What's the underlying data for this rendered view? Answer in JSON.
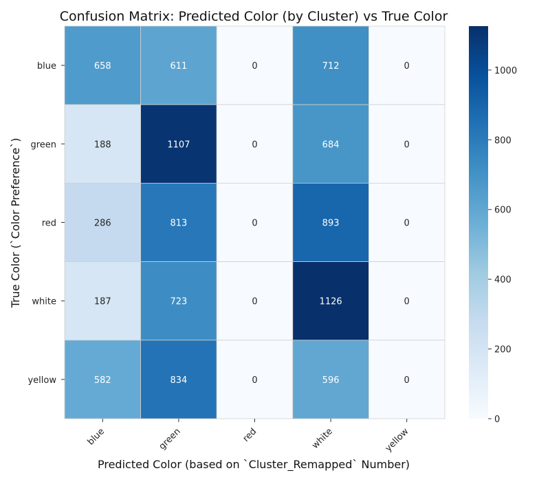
{
  "chart_data": {
    "type": "heatmap",
    "title": "Confusion Matrix: Predicted Color (by Cluster) vs True Color",
    "xlabel": "Predicted Color (based on `Cluster_Remapped` Number)",
    "ylabel": "True Color (`Color Preference`)",
    "x_categories": [
      "blue",
      "green",
      "red",
      "white",
      "yellow"
    ],
    "y_categories": [
      "blue",
      "green",
      "red",
      "white",
      "yellow"
    ],
    "values": [
      [
        658,
        611,
        0,
        712,
        0
      ],
      [
        188,
        1107,
        0,
        684,
        0
      ],
      [
        286,
        813,
        0,
        893,
        0
      ],
      [
        187,
        723,
        0,
        1126,
        0
      ],
      [
        582,
        834,
        0,
        596,
        0
      ]
    ],
    "colorbar": {
      "colormap": "Blues",
      "range": [
        0,
        1126
      ],
      "ticks": [
        0,
        200,
        400,
        600,
        800,
        1000
      ]
    },
    "grid": true,
    "legend": "colorbar-right"
  }
}
